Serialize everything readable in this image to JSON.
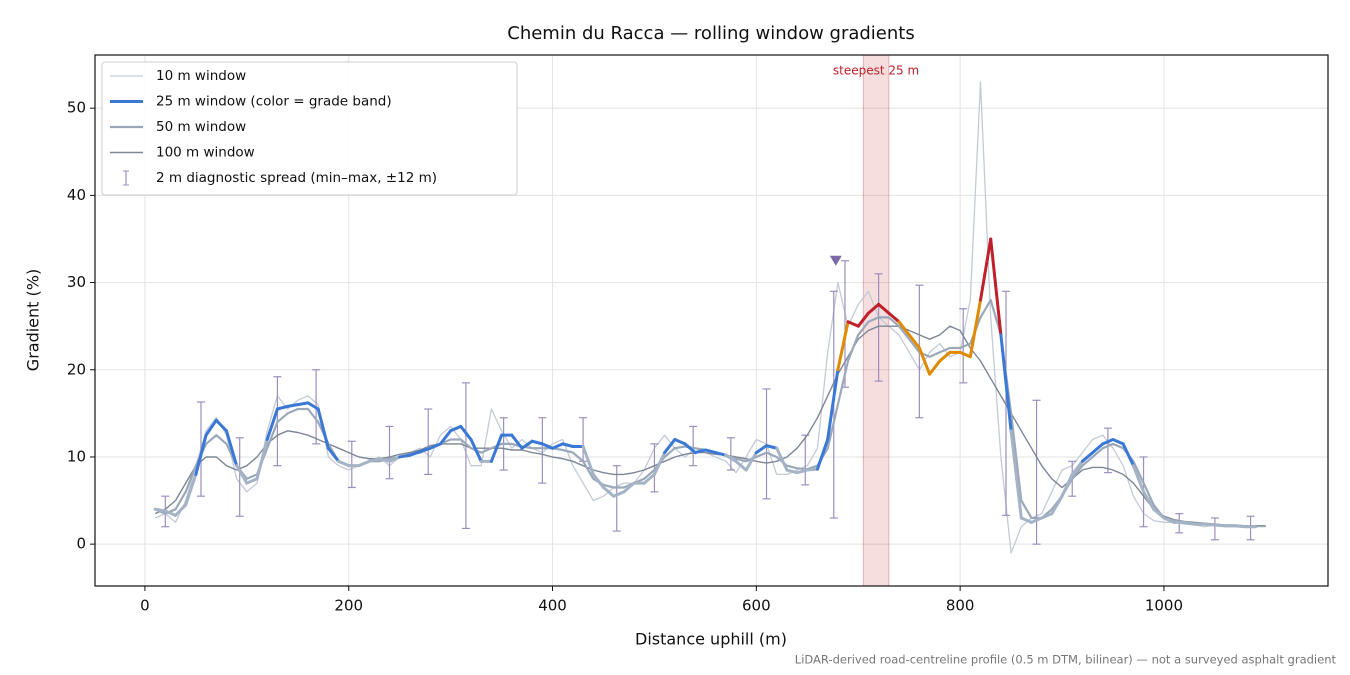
{
  "chart_data": {
    "type": "line",
    "title": "Chemin du Racca — rolling window gradients",
    "x_label": "Distance uphill (m)",
    "y_label": "Gradient (%)",
    "footnote": "LiDAR-derived road-centreline profile (0.5 m DTM, bilinear) — not a surveyed asphalt gradient",
    "xlim": [
      -49,
      1161
    ],
    "ylim": [
      -4.8,
      56.1
    ],
    "xticks": [
      0,
      200,
      400,
      600,
      800,
      1000
    ],
    "yticks": [
      0,
      10,
      20,
      30,
      40,
      50
    ],
    "grid": true,
    "legend": "upper left",
    "x": [
      10,
      20,
      30,
      40,
      50,
      60,
      70,
      80,
      90,
      100,
      110,
      120,
      130,
      140,
      150,
      160,
      170,
      180,
      190,
      200,
      210,
      220,
      230,
      240,
      250,
      260,
      270,
      280,
      290,
      300,
      310,
      320,
      330,
      340,
      350,
      360,
      370,
      380,
      390,
      400,
      410,
      420,
      430,
      440,
      450,
      460,
      470,
      480,
      490,
      500,
      510,
      520,
      530,
      540,
      550,
      560,
      570,
      580,
      590,
      600,
      610,
      620,
      630,
      640,
      650,
      660,
      670,
      680,
      690,
      700,
      710,
      720,
      730,
      740,
      750,
      760,
      770,
      780,
      790,
      800,
      810,
      820,
      830,
      840,
      850,
      860,
      870,
      880,
      890,
      900,
      910,
      920,
      930,
      940,
      950,
      960,
      970,
      980,
      990,
      1000,
      1010,
      1020,
      1030,
      1040,
      1050,
      1060,
      1070,
      1080,
      1090,
      1100
    ],
    "series": [
      {
        "name": "10 m window",
        "color": "#c3cbd6",
        "values": [
          3,
          3.5,
          2.5,
          5,
          9,
          13,
          14.5,
          12.5,
          7.5,
          6,
          7,
          13,
          17,
          15.5,
          16.5,
          17,
          16,
          10,
          9,
          8.5,
          9,
          9.5,
          10,
          9,
          10,
          10.5,
          11,
          10,
          12.5,
          13.5,
          12,
          9,
          9,
          15.5,
          13,
          11,
          12,
          11,
          10.5,
          11.5,
          12,
          9,
          7,
          5,
          5.5,
          6.5,
          7,
          7,
          8.5,
          11,
          12.5,
          11,
          10,
          11,
          10.5,
          10,
          9.5,
          8.2,
          10,
          12,
          11.5,
          8,
          8,
          8.5,
          9,
          11,
          22,
          30,
          25,
          27.5,
          29,
          26,
          25,
          24,
          22,
          20,
          22,
          23,
          21.5,
          22,
          28,
          53,
          26,
          10,
          -1,
          2,
          3,
          3.5,
          6,
          8.5,
          9,
          10.5,
          12,
          12.5,
          11,
          9,
          5.5,
          3.5,
          2.7,
          2.5,
          2.5,
          2.3,
          2.2,
          2,
          2.2,
          2,
          2,
          2,
          2,
          2
        ]
      },
      {
        "name": "25 m window (color = grade band)",
        "color": "#a4b3c6",
        "grade_bands": [
          {
            "from": 10,
            "color": "#3a78d6"
          },
          {
            "from": 20,
            "color": "#e08a00"
          },
          {
            "from": 25,
            "color": "#c0202a"
          }
        ],
        "values": [
          4,
          3.8,
          3.3,
          4.5,
          8,
          12.5,
          14.2,
          13,
          9,
          7,
          7.5,
          12,
          15.5,
          15.8,
          16,
          16.2,
          15.5,
          11,
          9.5,
          9,
          9,
          9.5,
          9.8,
          9.5,
          10,
          10.2,
          10.6,
          11,
          11.5,
          13,
          13.5,
          12,
          9.5,
          9.5,
          12.5,
          12.5,
          11,
          11.8,
          11.5,
          11,
          11.5,
          11.2,
          11.2,
          8,
          6.5,
          5.5,
          6,
          7,
          7,
          8,
          10.5,
          12,
          11.5,
          10.5,
          10.8,
          10.5,
          10.2,
          9.5,
          8.5,
          10.5,
          11.3,
          11,
          8.5,
          8.2,
          8.5,
          8.6,
          12,
          20,
          25.5,
          25,
          26.5,
          27.5,
          26.5,
          25.5,
          24,
          22.5,
          19.5,
          21,
          22,
          22,
          21.5,
          28,
          35,
          24,
          13,
          3,
          2.5,
          3,
          3.5,
          5.5,
          8,
          9.5,
          10.5,
          11.5,
          12,
          11.5,
          9,
          6,
          4,
          3,
          2.5,
          2.5,
          2.3,
          2.3,
          2.2,
          2.1,
          2.1,
          2,
          2,
          null
        ]
      },
      {
        "name": "50 m window",
        "color": "#9aa8ba",
        "values": [
          4,
          3.5,
          4,
          6,
          9,
          11.5,
          12.5,
          11.5,
          9,
          7.5,
          8,
          11,
          14,
          15,
          15.5,
          15.5,
          14,
          11.5,
          9.5,
          9,
          9,
          9.5,
          9.5,
          9.8,
          10,
          10.3,
          10.5,
          11,
          11.5,
          12,
          12,
          11,
          10.5,
          11,
          11.5,
          11.5,
          11.2,
          11,
          11,
          11,
          10.8,
          10.5,
          9.5,
          7.5,
          6.8,
          6.5,
          6.5,
          7,
          7.5,
          8.5,
          10,
          11,
          11.2,
          11,
          10.8,
          10.5,
          10.2,
          9.8,
          9.5,
          10,
          10.5,
          10,
          9,
          8.7,
          8.6,
          9,
          11,
          16,
          21,
          24,
          25.5,
          26,
          26,
          25,
          23.5,
          22,
          21.5,
          22,
          22.5,
          22.5,
          23,
          26,
          28,
          24,
          15,
          5,
          3,
          3,
          4,
          5.5,
          7.5,
          9,
          10,
          11,
          11.5,
          11,
          9.5,
          7,
          4.5,
          3,
          2.7,
          2.5,
          2.4,
          2.3,
          2.2,
          2.1,
          2.1,
          2,
          2,
          null
        ]
      },
      {
        "name": "100 m window",
        "color": "#7d8696",
        "values": [
          3.5,
          4,
          5,
          7,
          9,
          10,
          10,
          9,
          8.5,
          9,
          10,
          11.5,
          12.5,
          13,
          12.8,
          12.5,
          12,
          11.5,
          11,
          10.5,
          10,
          9.8,
          9.8,
          10,
          10.3,
          10.5,
          10.8,
          11.3,
          11.5,
          11.5,
          11.5,
          11,
          11,
          11,
          11,
          10.8,
          10.8,
          10.5,
          10.3,
          10,
          9.8,
          9.5,
          9,
          8.5,
          8.2,
          8,
          8,
          8.2,
          8.5,
          9,
          9.5,
          10,
          10.3,
          10.5,
          10.5,
          10.3,
          10.2,
          10,
          9.8,
          9.5,
          9.3,
          9.5,
          10,
          11,
          12.5,
          14.5,
          17,
          19.5,
          21.5,
          23.5,
          24.5,
          25,
          25,
          25,
          24.5,
          24,
          23.5,
          24,
          25,
          24.5,
          22.5,
          21,
          19,
          17,
          15,
          13,
          11,
          9,
          7.5,
          6.5,
          7.5,
          8.5,
          8.8,
          8.8,
          8.5,
          8,
          7,
          5.5,
          4,
          3.2,
          2.8,
          2.6,
          2.5,
          2.4,
          2.3,
          2.2,
          2.2,
          2.1,
          2.1,
          2.1
        ]
      }
    ],
    "spread": {
      "name": "2 m diagnostic spread (min–max, ±12 m)",
      "color": "#9d8fbd",
      "x": [
        20,
        55,
        93,
        130,
        168,
        203,
        240,
        278,
        315,
        352,
        390,
        430,
        463,
        500,
        538,
        575,
        610,
        648,
        676,
        687,
        720,
        760,
        803,
        845,
        875,
        910,
        945,
        980,
        1015,
        1050,
        1085
      ],
      "low": [
        2,
        5.5,
        3.2,
        9,
        11.5,
        6.5,
        7.5,
        8,
        1.8,
        8.5,
        7,
        9.5,
        1.5,
        6,
        9,
        8.5,
        5.2,
        6.8,
        3,
        18,
        18.7,
        14.5,
        18.5,
        3.3,
        0,
        5.5,
        8.2,
        2,
        1.3,
        0.5,
        0.5
      ],
      "high": [
        5.5,
        16.3,
        12.2,
        19.2,
        20,
        11.8,
        13.5,
        15.5,
        18.5,
        14.5,
        14.5,
        14.5,
        9,
        11.5,
        13.5,
        12.2,
        17.8,
        12.5,
        29,
        32.5,
        31,
        29.7,
        27,
        29,
        16.5,
        9.5,
        13.3,
        10,
        3.5,
        3,
        3.2
      ]
    },
    "peak_marker": {
      "x": 678,
      "y": 32.5,
      "color": "#7b6aa8"
    },
    "highlight": {
      "label": "steepest 25 m",
      "x": [
        705,
        730
      ],
      "color": "#c0202a"
    }
  }
}
